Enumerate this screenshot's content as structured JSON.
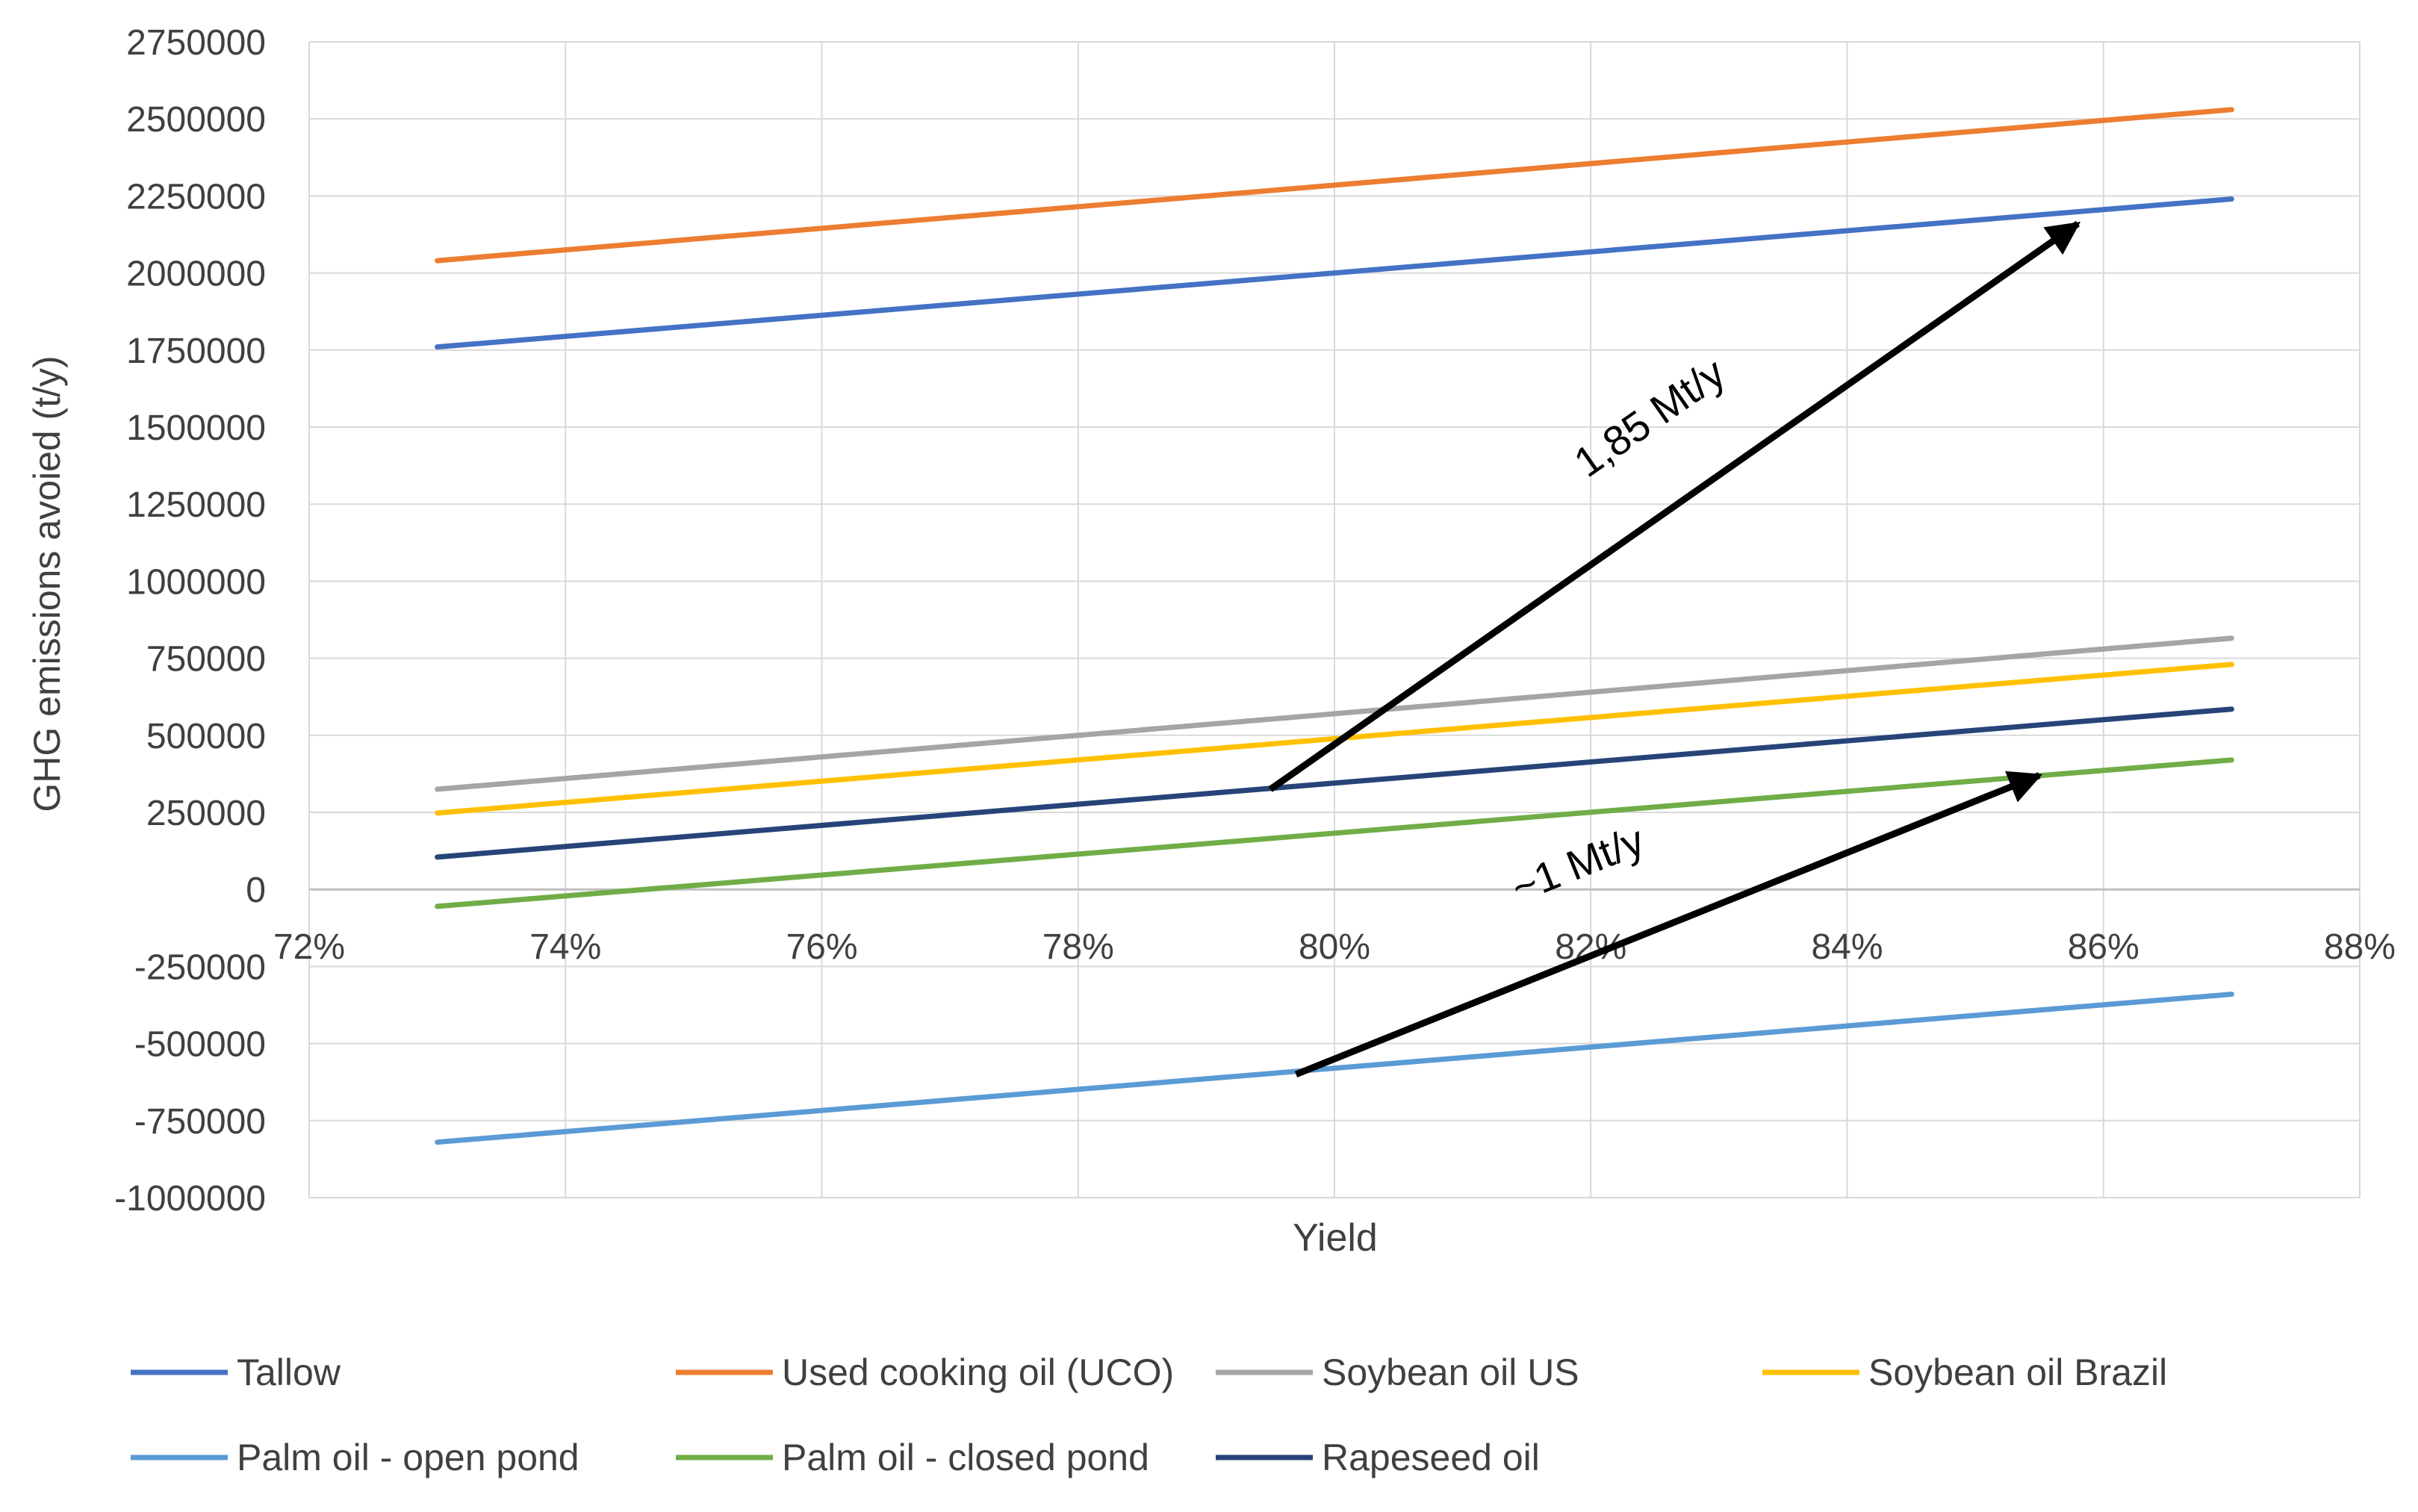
{
  "chart_data": {
    "type": "line",
    "title": "",
    "xlabel": "Yield",
    "ylabel": "GHG emissions avoied (t/y)",
    "xlim": [
      0.72,
      0.88
    ],
    "ylim": [
      -1000000,
      2750000
    ],
    "x_ticks": [
      0.72,
      0.74,
      0.76,
      0.78,
      0.8,
      0.82,
      0.84,
      0.86,
      0.88
    ],
    "x_tick_labels": [
      "72%",
      "74%",
      "76%",
      "78%",
      "80%",
      "82%",
      "84%",
      "86%",
      "88%"
    ],
    "y_ticks": [
      -1000000,
      -750000,
      -500000,
      -250000,
      0,
      250000,
      500000,
      750000,
      1000000,
      1250000,
      1500000,
      1750000,
      2000000,
      2250000,
      2500000,
      2750000
    ],
    "y_tick_labels": [
      "-1000000",
      "-750000",
      "-500000",
      "-250000",
      "0",
      "250000",
      "500000",
      "750000",
      "1000000",
      "1250000",
      "1500000",
      "1750000",
      "2000000",
      "2250000",
      "2500000",
      "2750000"
    ],
    "grid": true,
    "legend_position": "bottom",
    "series": [
      {
        "name": "Tallow",
        "color": "#4472C4",
        "x": [
          0.73,
          0.87
        ],
        "values": [
          1760000,
          2240000
        ]
      },
      {
        "name": "Used cooking oil (UCO)",
        "color": "#ED7D31",
        "x": [
          0.73,
          0.87
        ],
        "values": [
          2040000,
          2530000
        ]
      },
      {
        "name": "Soybean oil US",
        "color": "#A5A5A5",
        "x": [
          0.73,
          0.87
        ],
        "values": [
          325000,
          815000
        ]
      },
      {
        "name": "Soybean oil Brazil",
        "color": "#FFC000",
        "x": [
          0.73,
          0.87
        ],
        "values": [
          248000,
          730000
        ]
      },
      {
        "name": "Palm oil - open pond",
        "color": "#5B9BD5",
        "x": [
          0.73,
          0.87
        ],
        "values": [
          -820000,
          -340000
        ]
      },
      {
        "name": "Palm oil - closed pond",
        "color": "#70AD47",
        "x": [
          0.73,
          0.87
        ],
        "values": [
          -55000,
          420000
        ]
      },
      {
        "name": "Rapeseed oil",
        "color": "#264478",
        "x": [
          0.73,
          0.87
        ],
        "values": [
          105000,
          585000
        ]
      }
    ],
    "annotations": [
      {
        "text": "1,85 Mt/y",
        "from": [
          0.795,
          325000
        ],
        "to": [
          0.858,
          2160000
        ]
      },
      {
        "text": "~1 Mt/y",
        "from": [
          0.797,
          -600000
        ],
        "to": [
          0.855,
          370000
        ]
      }
    ]
  }
}
